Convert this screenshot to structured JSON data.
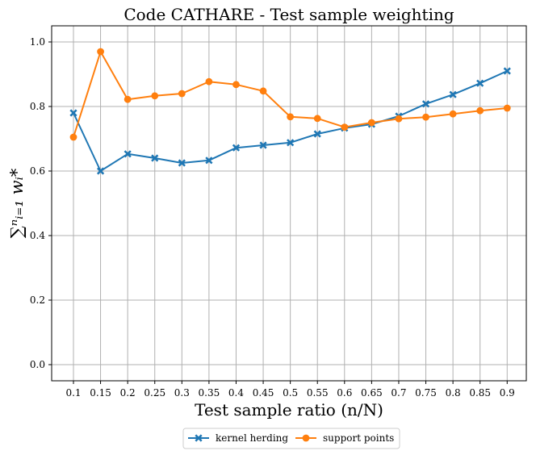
{
  "chart_data": {
    "type": "line",
    "title": "Code CATHARE - Test sample weighting",
    "xlabel": "Test sample ratio (n/N)",
    "ylabel": "∑ⁿᵢ₌₁ wᵢ*",
    "categories": [
      "0.1",
      "0.15",
      "0.2",
      "0.25",
      "0.3",
      "0.35",
      "0.4",
      "0.45",
      "0.5",
      "0.55",
      "0.6",
      "0.65",
      "0.7",
      "0.75",
      "0.8",
      "0.85",
      "0.9"
    ],
    "ylim": [
      -0.05,
      1.05
    ],
    "yticks": [
      "0.0",
      "0.2",
      "0.4",
      "0.6",
      "0.8",
      "1.0"
    ],
    "ytick_values": [
      0.0,
      0.2,
      0.4,
      0.6,
      0.8,
      1.0
    ],
    "grid": true,
    "legend_position": "bottom-center-outside",
    "series": [
      {
        "name": "kernel herding",
        "color": "#1f77b4",
        "marker": "x-filled",
        "values": [
          0.78,
          0.6,
          0.653,
          0.64,
          0.625,
          0.633,
          0.672,
          0.68,
          0.688,
          0.715,
          0.733,
          0.745,
          0.77,
          0.808,
          0.837,
          0.872,
          0.91
        ]
      },
      {
        "name": "support points",
        "color": "#ff7f0e",
        "marker": "circle",
        "values": [
          0.705,
          0.97,
          0.822,
          0.833,
          0.84,
          0.877,
          0.868,
          0.848,
          0.768,
          0.763,
          0.736,
          0.75,
          0.762,
          0.767,
          0.777,
          0.787,
          0.795
        ]
      }
    ]
  }
}
